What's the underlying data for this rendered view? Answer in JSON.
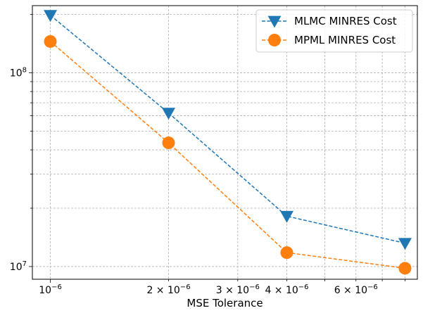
{
  "chart_data": {
    "type": "line",
    "title": "",
    "xlabel": "MSE Tolerance",
    "ylabel": "",
    "xscale": "log",
    "yscale": "log",
    "xlim": [
      9e-07,
      8.6e-06
    ],
    "ylim": [
      8600000.0,
      222000000.0
    ],
    "grid": true,
    "grid_style": "dashed",
    "legend_position": "top-right",
    "x": [
      1e-06,
      2e-06,
      4e-06,
      8e-06
    ],
    "series": [
      {
        "name": "MLMC MINRES Cost",
        "values": [
          198000000.0,
          62000000.0,
          18200000.0,
          13200000.0
        ],
        "color": "#1f77b4",
        "marker": "triangle-down",
        "linestyle": "dashed"
      },
      {
        "name": "MPML MINRES Cost",
        "values": [
          145000000.0,
          43500000.0,
          11800000.0,
          9800000.0
        ],
        "color": "#ff7f0e",
        "marker": "circle",
        "linestyle": "dashed"
      }
    ],
    "x_major_ticks": [
      {
        "value": 1e-06,
        "mantissa": "10",
        "exponent": "−6"
      }
    ],
    "x_minor_tick_values": [
      2e-06,
      3e-06,
      4e-06,
      5e-06,
      6e-06,
      7e-06,
      8e-06
    ],
    "x_minor_labels": [
      {
        "value": 2e-06,
        "mantissa": "2 × 10",
        "exponent": "−6"
      },
      {
        "value": 3e-06,
        "mantissa": "3 × 10",
        "exponent": "−6"
      },
      {
        "value": 4e-06,
        "mantissa": "4 × 10",
        "exponent": "−6"
      },
      {
        "value": 6e-06,
        "mantissa": "6 × 10",
        "exponent": "−6"
      }
    ],
    "y_major_ticks": [
      {
        "value": 10000000.0,
        "mantissa": "10",
        "exponent": "7"
      },
      {
        "value": 100000000.0,
        "mantissa": "10",
        "exponent": "8"
      }
    ],
    "y_minor_tick_values": [
      20000000.0,
      30000000.0,
      40000000.0,
      50000000.0,
      60000000.0,
      70000000.0,
      80000000.0,
      90000000.0,
      200000000.0
    ]
  }
}
